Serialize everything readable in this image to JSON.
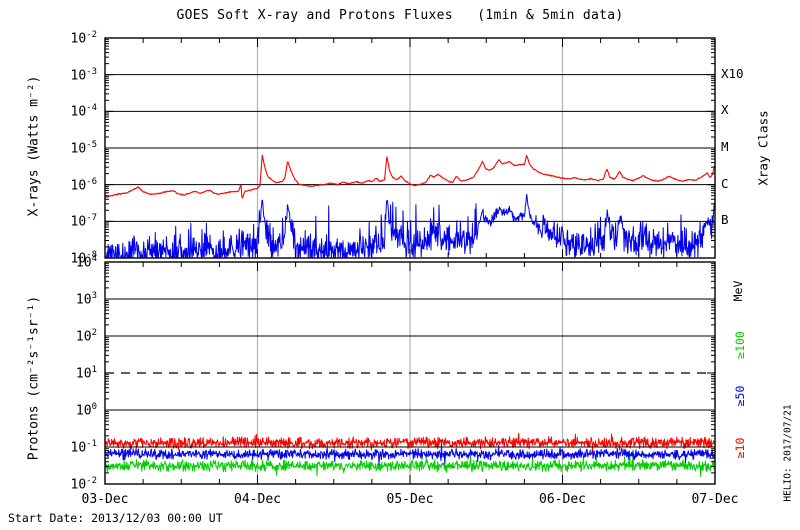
{
  "title": "GOES Soft X-ray and Protons Fluxes   (1min & 5min data)",
  "footer": {
    "start_date": "Start Date: 2013/12/03 00:00 UT"
  },
  "watermark": "HELIO: 2017/07/21",
  "colors": {
    "background": "#ffffff",
    "axis": "#000000",
    "day_grid_gray": "#b2b2b2",
    "xray_red": "#ff0000",
    "xray_blue": "#0000ee",
    "proton_ge10_red": "#ff0000",
    "proton_ge50_blue": "#0000ee",
    "proton_ge100_green": "#00cc00"
  },
  "x_axis": {
    "labels": [
      "03-Dec",
      "04-Dec",
      "05-Dec",
      "06-Dec",
      "07-Dec"
    ],
    "total_hours": 96,
    "major_tick_hours": 24,
    "minor_tick_hours": 6,
    "day_gridlines_hours": [
      24,
      48,
      72
    ]
  },
  "chart_data": [
    {
      "id": "xray",
      "type": "line",
      "ylabel": "X-rays (Watts m⁻²)",
      "ylim": [
        1e-08,
        0.01
      ],
      "y_tick_exponents": [
        -2,
        -3,
        -4,
        -5,
        -6,
        -7,
        -8
      ],
      "grid_decade_exponents": [
        -3,
        -4,
        -5,
        -6,
        -7
      ],
      "right_axis": {
        "label": "Xray Class",
        "classes": [
          {
            "label": "X10",
            "flux": 0.001
          },
          {
            "label": "X",
            "flux": 0.0001
          },
          {
            "label": "M",
            "flux": 1e-05
          },
          {
            "label": "C",
            "flux": 1e-06
          },
          {
            "label": "B",
            "flux": 1e-07
          }
        ]
      },
      "series": [
        {
          "name": "xray-red",
          "color": "#ff0000",
          "noise_log_amp": 0.018,
          "keypoints": [
            [
              0,
              4.5e-07
            ],
            [
              1,
              5e-07
            ],
            [
              2,
              5.5e-07
            ],
            [
              3.5,
              6e-07
            ],
            [
              4.5,
              7.5e-07
            ],
            [
              5.2,
              8.5e-07
            ],
            [
              6,
              6.5e-07
            ],
            [
              7,
              5.5e-07
            ],
            [
              8,
              5.6e-07
            ],
            [
              9,
              6e-07
            ],
            [
              10,
              6.6e-07
            ],
            [
              10.8,
              6.8e-07
            ],
            [
              11.5,
              5.6e-07
            ],
            [
              12.5,
              5.2e-07
            ],
            [
              13.5,
              6e-07
            ],
            [
              14.2,
              6.6e-07
            ],
            [
              15,
              5.8e-07
            ],
            [
              16,
              6.8e-07
            ],
            [
              16.6,
              7e-07
            ],
            [
              17.2,
              5.8e-07
            ],
            [
              18,
              5.5e-07
            ],
            [
              19,
              6e-07
            ],
            [
              20,
              6.4e-07
            ],
            [
              21,
              6.5e-07
            ],
            [
              21.4,
              1.05e-06
            ],
            [
              21.55,
              4e-07
            ],
            [
              22,
              6.6e-07
            ],
            [
              23,
              7.2e-07
            ],
            [
              24,
              8e-07
            ],
            [
              24.4,
              9.5e-07
            ],
            [
              24.75,
              6.5e-06
            ],
            [
              25.1,
              3.2e-06
            ],
            [
              25.6,
              1.7e-06
            ],
            [
              26.2,
              1.35e-06
            ],
            [
              27,
              1.15e-06
            ],
            [
              27.8,
              1.2e-06
            ],
            [
              28.3,
              1.5e-06
            ],
            [
              28.75,
              4.5e-06
            ],
            [
              29.2,
              2.6e-06
            ],
            [
              29.8,
              1.45e-06
            ],
            [
              30.5,
              1.05e-06
            ],
            [
              31.5,
              9.5e-07
            ],
            [
              32.5,
              9e-07
            ],
            [
              33.5,
              9.6e-07
            ],
            [
              34.5,
              1e-06
            ],
            [
              35.5,
              1.1e-06
            ],
            [
              36.5,
              1e-06
            ],
            [
              37.5,
              1.15e-06
            ],
            [
              38.5,
              1.05e-06
            ],
            [
              39.5,
              1.2e-06
            ],
            [
              40.5,
              1.1e-06
            ],
            [
              41.5,
              1.3e-06
            ],
            [
              42,
              1.2e-06
            ],
            [
              42.7,
              1.5e-06
            ],
            [
              43.2,
              1.25e-06
            ],
            [
              44,
              1.35e-06
            ],
            [
              44.35,
              6e-06
            ],
            [
              44.8,
              2.3e-06
            ],
            [
              45.3,
              1.55e-06
            ],
            [
              46,
              1.35e-06
            ],
            [
              46.6,
              1.75e-06
            ],
            [
              47.2,
              1.3e-06
            ],
            [
              48,
              1.05e-06
            ],
            [
              48.7,
              9.5e-07
            ],
            [
              49.5,
              1e-06
            ],
            [
              50.5,
              1.15e-06
            ],
            [
              51.2,
              1.8e-06
            ],
            [
              51.8,
              1.6e-06
            ],
            [
              52.4,
              1.95e-06
            ],
            [
              53,
              1.6e-06
            ],
            [
              54,
              1.25e-06
            ],
            [
              54.7,
              1.15e-06
            ],
            [
              55.3,
              1.7e-06
            ],
            [
              56,
              1.25e-06
            ],
            [
              57,
              1.35e-06
            ],
            [
              58,
              1.6e-06
            ],
            [
              58.8,
              2.6e-06
            ],
            [
              59.4,
              4.4e-06
            ],
            [
              59.9,
              2.7e-06
            ],
            [
              60.6,
              2.5e-06
            ],
            [
              61.3,
              3.1e-06
            ],
            [
              62,
              4.9e-06
            ],
            [
              62.5,
              3.7e-06
            ],
            [
              63.1,
              3.9e-06
            ],
            [
              63.6,
              4.3e-06
            ],
            [
              64.2,
              3.5e-06
            ],
            [
              64.8,
              3.3e-06
            ],
            [
              65.4,
              3.6e-06
            ],
            [
              66,
              3.5e-06
            ],
            [
              66.35,
              6.4e-06
            ],
            [
              66.8,
              3.6e-06
            ],
            [
              67.4,
              2.7e-06
            ],
            [
              68.2,
              2.2e-06
            ],
            [
              69,
              1.95e-06
            ],
            [
              70,
              1.8e-06
            ],
            [
              71,
              1.65e-06
            ],
            [
              72,
              1.5e-06
            ],
            [
              73,
              1.45e-06
            ],
            [
              74,
              1.55e-06
            ],
            [
              74.8,
              1.4e-06
            ],
            [
              75.6,
              1.35e-06
            ],
            [
              76.5,
              1.45e-06
            ],
            [
              77.5,
              1.3e-06
            ],
            [
              78.4,
              1.4e-06
            ],
            [
              79,
              2.7e-06
            ],
            [
              79.45,
              1.6e-06
            ],
            [
              80.2,
              1.4e-06
            ],
            [
              81,
              2.3e-06
            ],
            [
              81.5,
              1.6e-06
            ],
            [
              82.3,
              1.4e-06
            ],
            [
              83,
              1.3e-06
            ],
            [
              84,
              1.5e-06
            ],
            [
              84.7,
              1.8e-06
            ],
            [
              85.3,
              1.5e-06
            ],
            [
              86,
              1.35e-06
            ],
            [
              87,
              1.25e-06
            ],
            [
              88,
              1.4e-06
            ],
            [
              88.7,
              1.7e-06
            ],
            [
              89.4,
              1.5e-06
            ],
            [
              90,
              1.35e-06
            ],
            [
              91,
              1.25e-06
            ],
            [
              92,
              1.4e-06
            ],
            [
              92.8,
              1.3e-06
            ],
            [
              93.6,
              1.5e-06
            ],
            [
              94.3,
              1.8e-06
            ],
            [
              94.75,
              2.1e-06
            ],
            [
              95.2,
              1.55e-06
            ],
            [
              95.6,
              1.9e-06
            ],
            [
              96,
              3.8e-06
            ]
          ]
        },
        {
          "name": "xray-blue",
          "color": "#0000ee",
          "noise_log_amp": 0.5,
          "spike_chance": 0.05,
          "floor": 7e-09,
          "keypoints": [
            [
              0,
              1.2e-08
            ],
            [
              3,
              1e-08
            ],
            [
              5,
              1.8e-08
            ],
            [
              6,
              1.2e-08
            ],
            [
              9,
              1.5e-08
            ],
            [
              12,
              1e-08
            ],
            [
              14,
              1.3e-08
            ],
            [
              16,
              2e-08
            ],
            [
              18,
              1.2e-08
            ],
            [
              20,
              1.5e-08
            ],
            [
              21.5,
              3e-08
            ],
            [
              22.5,
              1.5e-08
            ],
            [
              24,
              2.5e-08
            ],
            [
              24.75,
              3.2e-07
            ],
            [
              25.1,
              1.2e-07
            ],
            [
              25.6,
              4e-08
            ],
            [
              26.5,
              2.5e-08
            ],
            [
              27.5,
              2.5e-08
            ],
            [
              28.3,
              4e-08
            ],
            [
              28.75,
              2.8e-07
            ],
            [
              29.2,
              9e-08
            ],
            [
              29.8,
              3.5e-08
            ],
            [
              30.5,
              2e-08
            ],
            [
              32,
              1.5e-08
            ],
            [
              34,
              1.5e-08
            ],
            [
              36,
              1.8e-08
            ],
            [
              38,
              1.5e-08
            ],
            [
              40,
              2e-08
            ],
            [
              41.5,
              2.5e-08
            ],
            [
              42.7,
              3e-08
            ],
            [
              44,
              3e-08
            ],
            [
              44.35,
              4.5e-07
            ],
            [
              44.8,
              9e-08
            ],
            [
              45.5,
              4e-08
            ],
            [
              46.6,
              4e-08
            ],
            [
              47.5,
              2.5e-08
            ],
            [
              48.5,
              2e-08
            ],
            [
              50,
              2.2e-08
            ],
            [
              51.2,
              4.5e-08
            ],
            [
              52.4,
              5e-08
            ],
            [
              53.5,
              3e-08
            ],
            [
              55.3,
              4e-08
            ],
            [
              56.5,
              2.5e-08
            ],
            [
              58,
              4e-08
            ],
            [
              58.8,
              8e-08
            ],
            [
              59.4,
              1.8e-07
            ],
            [
              59.9,
              1.1e-07
            ],
            [
              60.6,
              1e-07
            ],
            [
              61.3,
              1.3e-07
            ],
            [
              62,
              2.4e-07
            ],
            [
              62.5,
              1.6e-07
            ],
            [
              63.1,
              1.7e-07
            ],
            [
              63.6,
              2.1e-07
            ],
            [
              64.2,
              1.4e-07
            ],
            [
              64.8,
              1.2e-07
            ],
            [
              65.4,
              1.4e-07
            ],
            [
              66,
              1.5e-07
            ],
            [
              66.35,
              4.5e-07
            ],
            [
              66.8,
              1.5e-07
            ],
            [
              67.5,
              9e-08
            ],
            [
              68.5,
              6e-08
            ],
            [
              69.5,
              5e-08
            ],
            [
              70.5,
              4.5e-08
            ],
            [
              71.5,
              3.5e-08
            ],
            [
              72.5,
              3e-08
            ],
            [
              74,
              2.5e-08
            ],
            [
              75.5,
              2.2e-08
            ],
            [
              77,
              2.5e-08
            ],
            [
              78.5,
              2.8e-08
            ],
            [
              79.05,
              1.9e-07
            ],
            [
              79.5,
              5e-08
            ],
            [
              80.5,
              3e-08
            ],
            [
              81.05,
              1.6e-07
            ],
            [
              81.6,
              4.5e-08
            ],
            [
              82.5,
              2.8e-08
            ],
            [
              84,
              2.5e-08
            ],
            [
              84.8,
              4e-08
            ],
            [
              86,
              2.2e-08
            ],
            [
              88,
              2.5e-08
            ],
            [
              88.8,
              3.5e-08
            ],
            [
              90,
              2.2e-08
            ],
            [
              91.5,
              2e-08
            ],
            [
              93,
              2.5e-08
            ],
            [
              93.8,
              4e-08
            ],
            [
              94.4,
              9e-08
            ],
            [
              94.9,
              1.1e-07
            ],
            [
              95.5,
              6e-08
            ],
            [
              96,
              3.5e-07
            ]
          ]
        }
      ]
    },
    {
      "id": "protons",
      "type": "line",
      "ylabel": "Protons (cm⁻²s⁻¹sr⁻¹)",
      "ylim": [
        0.01,
        10000.0
      ],
      "y_tick_exponents": [
        4,
        3,
        2,
        1,
        0,
        -1,
        -2
      ],
      "grid_decade_exponents": [
        3,
        2,
        0,
        -1
      ],
      "threshold": {
        "value": 10,
        "style": "dashed"
      },
      "right_axis": {
        "unit_label": "MeV",
        "series_labels": [
          {
            "label": "≥100",
            "color": "#00cc00"
          },
          {
            "label": "≥50",
            "color": "#0000ee"
          },
          {
            "label": "≥10",
            "color": "#ff0000"
          }
        ]
      },
      "series": [
        {
          "name": "protons-ge100",
          "label": "≥100",
          "color": "#00cc00",
          "base": 0.031,
          "noise_log_amp": 0.17
        },
        {
          "name": "protons-ge50",
          "label": "≥50",
          "color": "#0000ee",
          "base": 0.064,
          "noise_log_amp": 0.16
        },
        {
          "name": "protons-ge10",
          "label": "≥10",
          "color": "#ff0000",
          "base": 0.13,
          "noise_log_amp": 0.17
        }
      ]
    }
  ]
}
